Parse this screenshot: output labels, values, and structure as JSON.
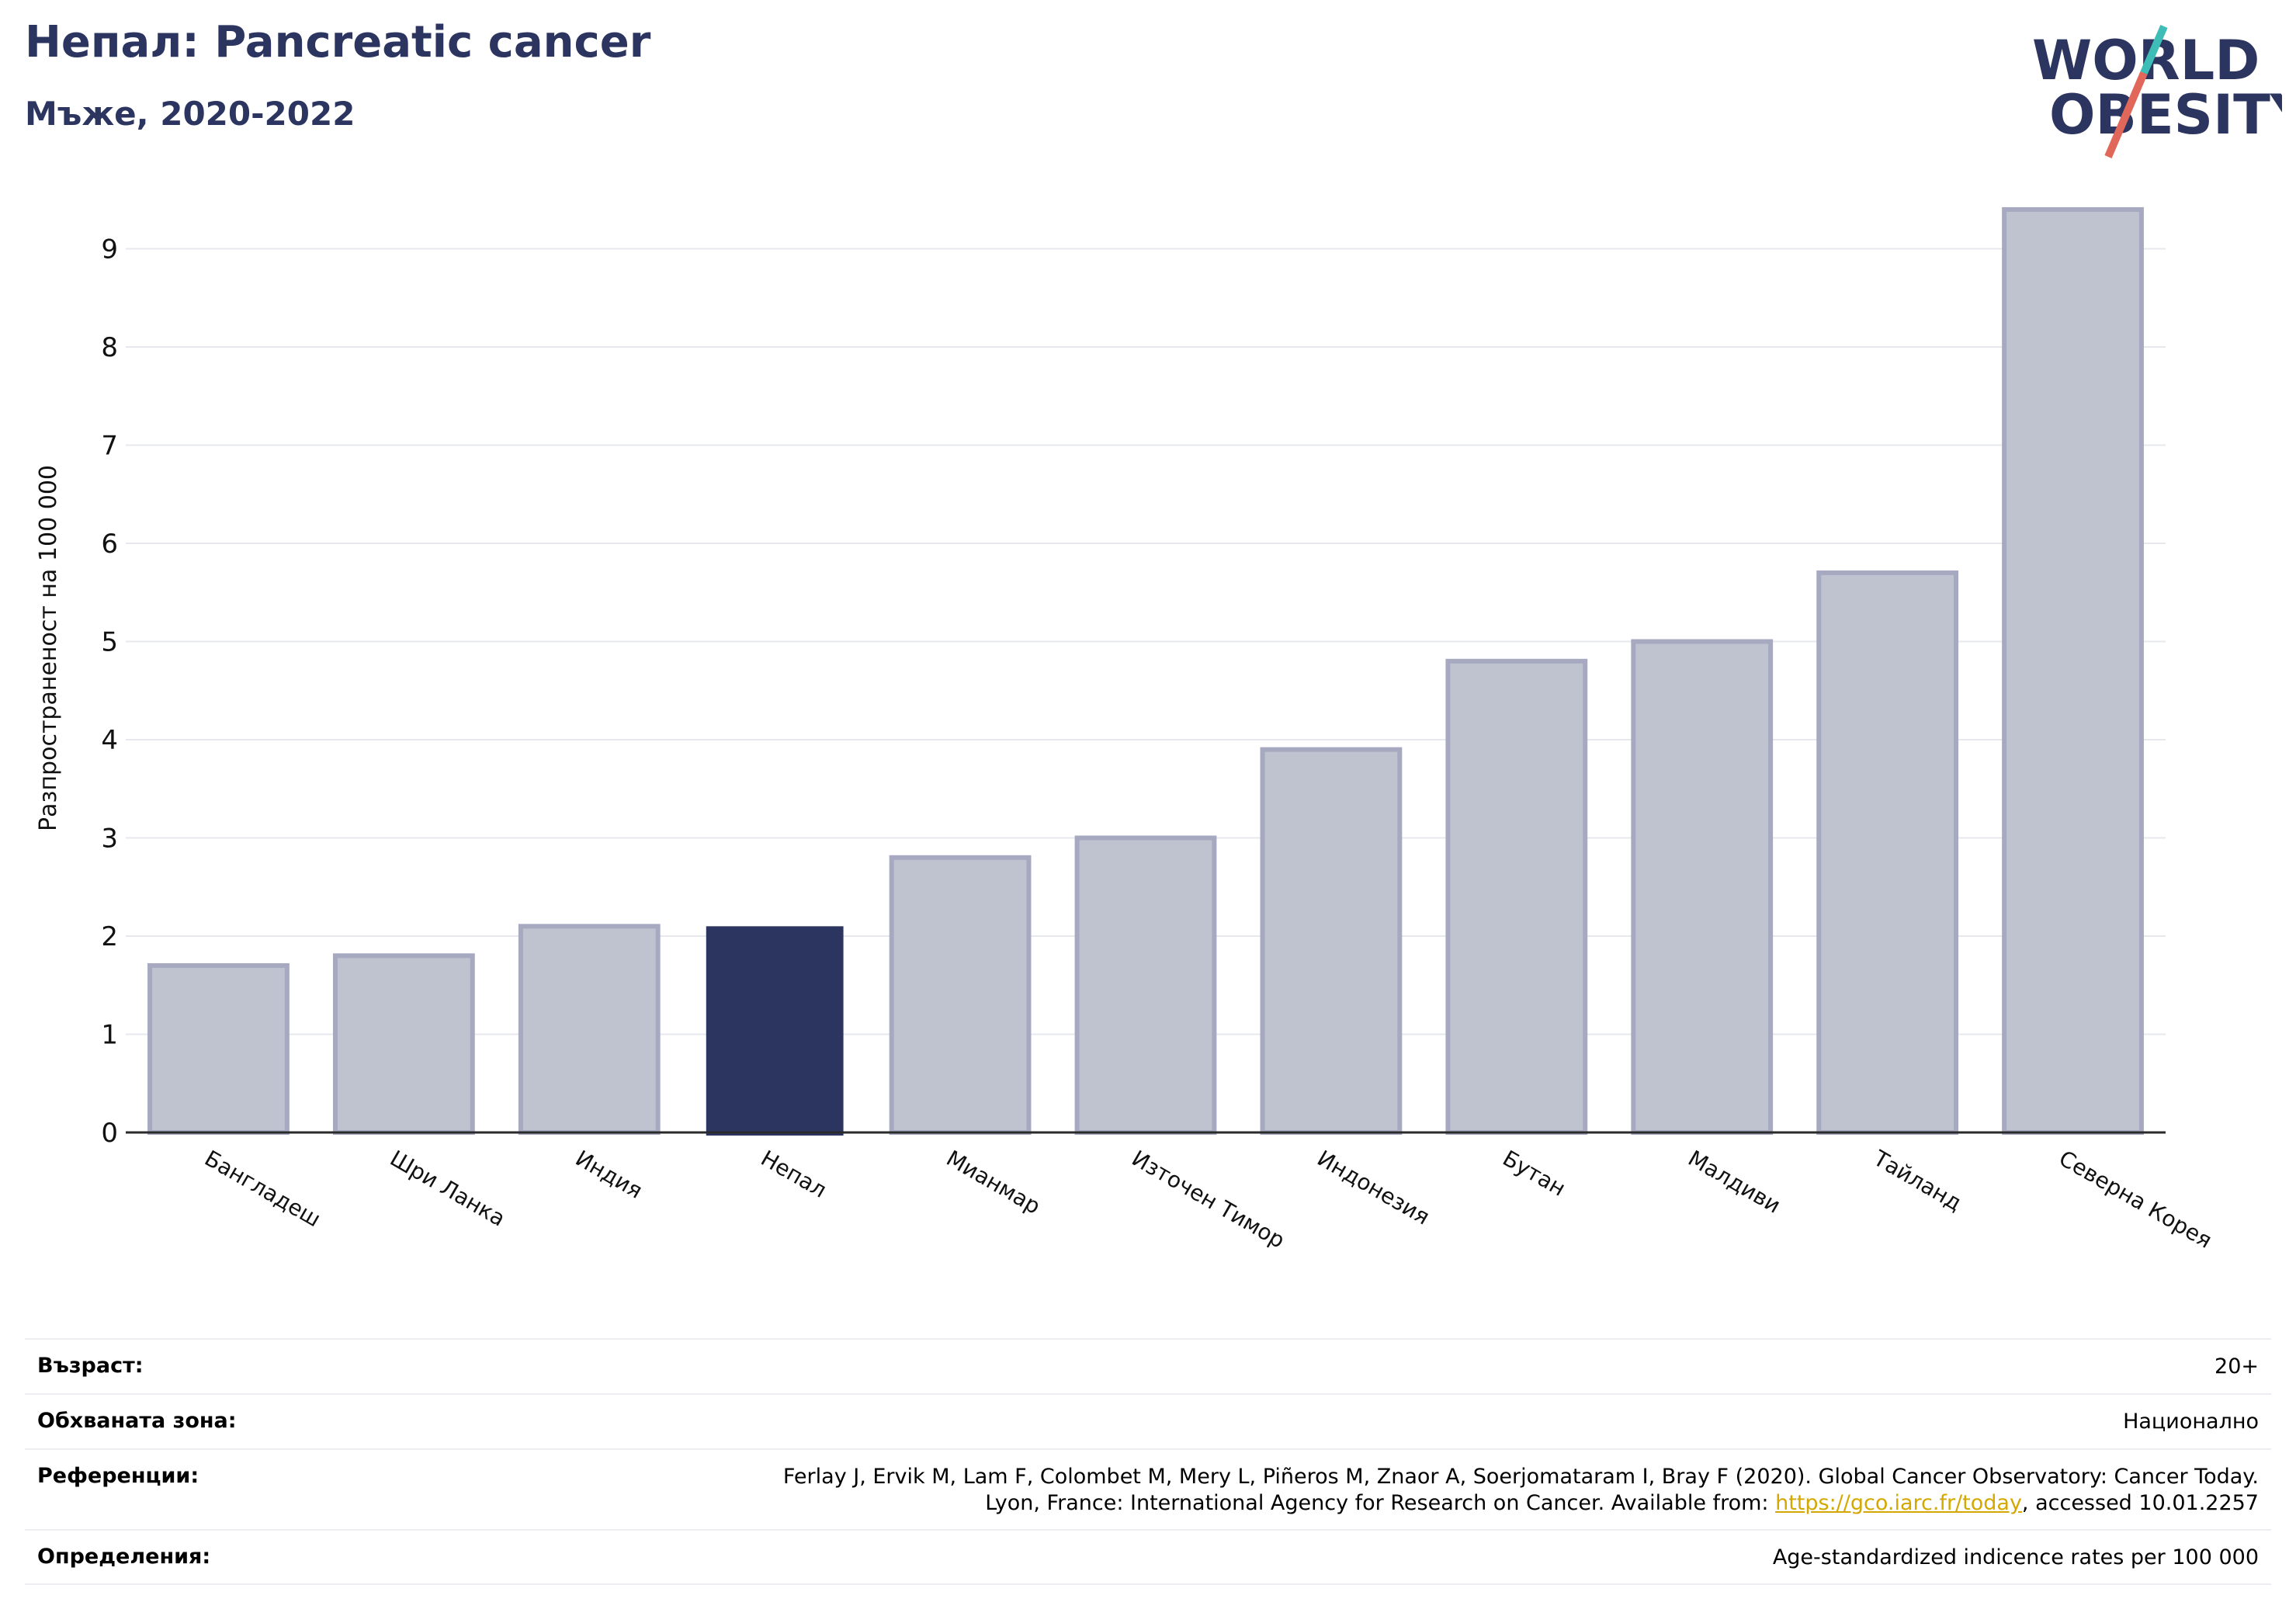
{
  "header": {
    "title": "Непал: Pancreatic cancer",
    "subtitle": "Мъже, 2020-2022"
  },
  "logo": {
    "line1": "WORLD",
    "line2": "OBESITY",
    "accent_teal": "#3dbdb6",
    "accent_red": "#e0675a",
    "text_color": "#2b3560"
  },
  "chart_data": {
    "type": "bar",
    "ylabel": "Разпространеност  на 100 000",
    "xlabel": "",
    "ylim": [
      0,
      9.5
    ],
    "yticks": [
      0,
      1,
      2,
      3,
      4,
      5,
      6,
      7,
      8,
      9
    ],
    "grid": true,
    "categories": [
      "Бангладеш",
      "Шри Ланка",
      "Индия",
      "Непал",
      "Мианмар",
      "Източен Тимор",
      "Индонезия",
      "Бутан",
      "Малдиви",
      "Тайланд",
      "Северна Корея"
    ],
    "values": [
      1.7,
      1.8,
      2.1,
      2.1,
      2.8,
      3.0,
      3.9,
      4.8,
      5.0,
      5.7,
      9.4
    ],
    "highlight": "Непал",
    "highlight_color": "#2b3560",
    "bar_color": "#bfc2cf",
    "bar_border_color": "#a6a9c0"
  },
  "info": {
    "age_label": "Възраст:",
    "age_value": "20+",
    "area_label": "Обхваната зона:",
    "area_value": "Национално",
    "refs_label": "Референции:",
    "refs_line1": "Ferlay J, Ervik M, Lam F, Colombet M, Mery L, Piñeros M, Znaor A, Soerjomataram I, Bray F (2020). Global Cancer Observatory: Cancer Today.",
    "refs_line2_prefix": "Lyon, France: International Agency for Research on Cancer. Available from: ",
    "refs_link": "https://gco.iarc.fr/today",
    "refs_line2_suffix": ", accessed 10.01.2257",
    "defs_label": "Определения:",
    "defs_value": "Age-standardized indicence rates per 100 000"
  }
}
